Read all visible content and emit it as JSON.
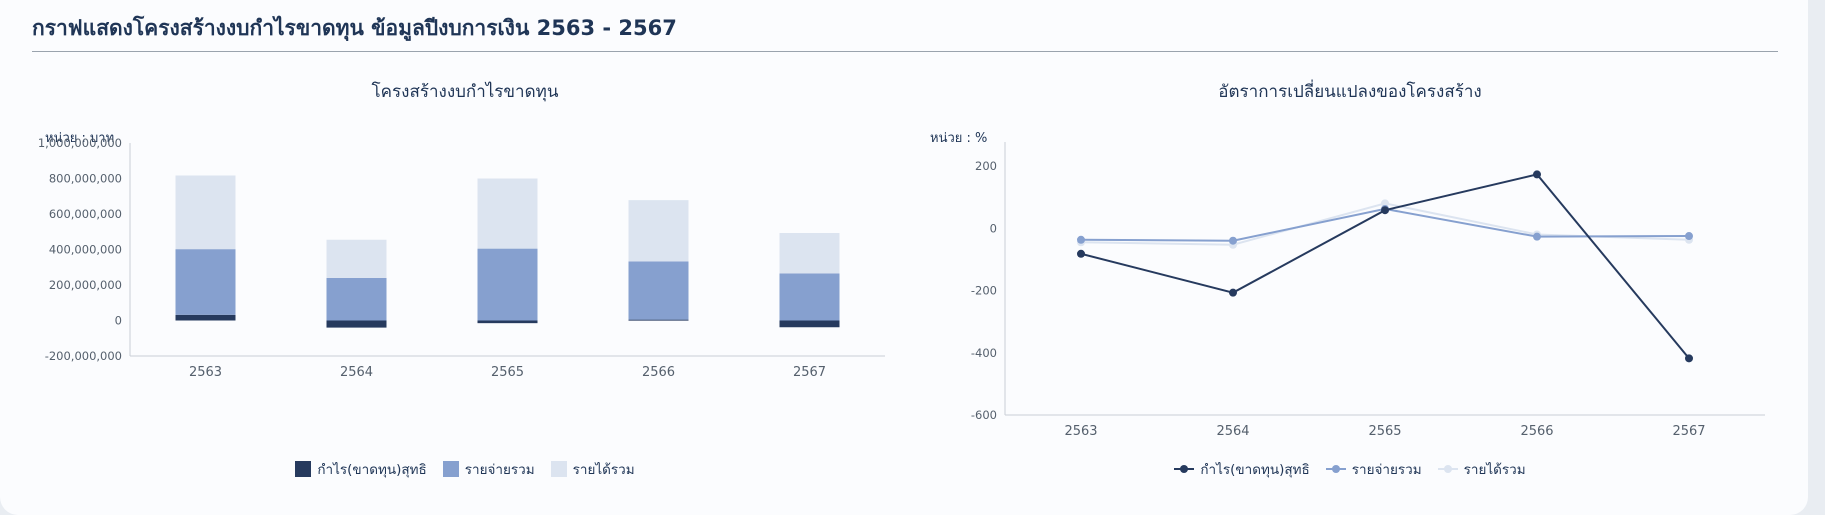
{
  "page": {
    "title": "กราฟแสดงโครงสร้างงบกำไรขาดทุน ข้อมูลปีงบการเงิน 2563 - 2567"
  },
  "colors": {
    "dark": "#263a5e",
    "mid": "#86a0cf",
    "light": "#dce4f0"
  },
  "chart_data": [
    {
      "type": "bar",
      "stacked": true,
      "title": "โครงสร้างงบกำไรขาดทุน",
      "unit_label": "หน่วย : บาท",
      "categories": [
        "2563",
        "2564",
        "2565",
        "2566",
        "2567"
      ],
      "ylim": [
        -200000000,
        1000000000
      ],
      "yticks": [
        -200000000,
        0,
        200000000,
        400000000,
        600000000,
        800000000,
        1000000000
      ],
      "ytick_labels": [
        "-200,000,000",
        "0",
        "200,000,000",
        "400,000,000",
        "600,000,000",
        "800,000,000",
        "1,000,000,000"
      ],
      "series": [
        {
          "name": "กำไร(ขาดทุน)สุทธิ",
          "color": "#263a5e",
          "values": [
            32000000,
            -40000000,
            -15000000,
            5000000,
            -38000000
          ]
        },
        {
          "name": "รายจ่ายรวม",
          "color": "#86a0cf",
          "values": [
            370000000,
            240000000,
            405000000,
            328000000,
            265000000
          ]
        },
        {
          "name": "รายได้รวม",
          "color": "#dce4f0",
          "values": [
            415000000,
            215000000,
            395000000,
            345000000,
            228000000
          ]
        }
      ],
      "legend": "bottom",
      "grid": false
    },
    {
      "type": "line",
      "title": "อัตราการเปลี่ยนแปลงของโครงสร้าง",
      "unit_label": "หน่วย : %",
      "categories": [
        "2563",
        "2564",
        "2565",
        "2566",
        "2567"
      ],
      "ylim": [
        -600,
        200
      ],
      "yticks": [
        -600,
        -400,
        -200,
        0,
        200
      ],
      "ytick_labels": [
        "-600",
        "-400",
        "-200",
        "0",
        "200"
      ],
      "series": [
        {
          "name": "กำไร(ขาดทุน)สุทธิ",
          "color": "#263a5e",
          "values": [
            -82,
            -207,
            58,
            173,
            -418
          ]
        },
        {
          "name": "รายจ่ายรวม",
          "color": "#86a0cf",
          "values": [
            -37,
            -40,
            62,
            -27,
            -25
          ]
        },
        {
          "name": "รายได้รวม",
          "color": "#dce4f0",
          "values": [
            -45,
            -53,
            80,
            -20,
            -37
          ]
        }
      ],
      "legend": "bottom",
      "grid": false
    }
  ]
}
